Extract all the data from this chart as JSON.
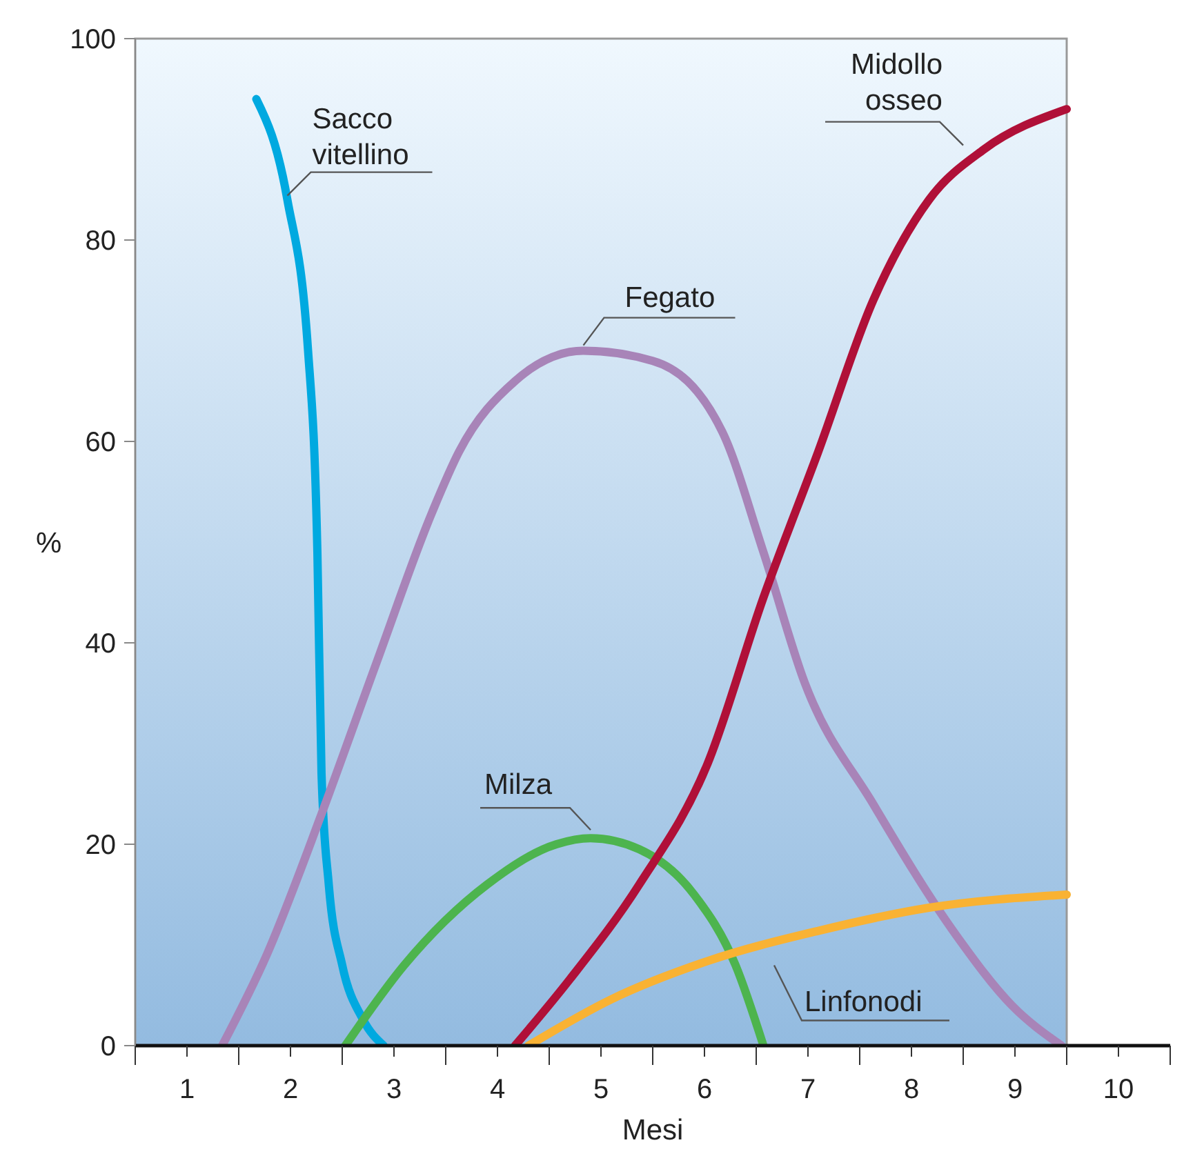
{
  "chart_data": {
    "type": "line",
    "xlabel": "Mesi",
    "ylabel": "%",
    "xlim": [
      0.5,
      10.5
    ],
    "ylim": [
      0,
      100
    ],
    "xticks": [
      {
        "value": 0.5,
        "label": null
      },
      1,
      {
        "value": 1.5,
        "label": null
      },
      2,
      {
        "value": 2.5,
        "label": null
      },
      3,
      {
        "value": 3.5,
        "label": null
      },
      4,
      {
        "value": 4.5,
        "label": null
      },
      5,
      {
        "value": 5.5,
        "label": null
      },
      6,
      {
        "value": 6.5,
        "label": null
      },
      7,
      {
        "value": 7.5,
        "label": null
      },
      8,
      {
        "value": 8.5,
        "label": null
      },
      9,
      {
        "value": 9.5,
        "label": null
      },
      10,
      {
        "value": 10.5,
        "label": null
      }
    ],
    "yticks": [
      0,
      20,
      40,
      60,
      80,
      100
    ],
    "grid": false,
    "series": [
      {
        "name": "Sacco vitellino",
        "color": "#00a9e0",
        "x": [
          1.67,
          1.97,
          2.17,
          2.26,
          2.3,
          2.37,
          2.5,
          2.7,
          2.9
        ],
        "values": [
          94,
          84,
          69,
          49,
          27,
          16,
          8,
          2.6,
          0
        ]
      },
      {
        "name": "Fegato",
        "color": "#a884b8",
        "x": [
          1.34,
          1.77,
          2.3,
          2.83,
          3.37,
          3.63,
          4.17,
          4.83,
          5.5,
          6.17,
          6.57,
          6.97,
          7.63,
          8.43,
          8.97,
          9.45
        ],
        "values": [
          0,
          9,
          23,
          38,
          53,
          59,
          66,
          69,
          68,
          61,
          49,
          36,
          24,
          11,
          4,
          0
        ]
      },
      {
        "name": "Milza",
        "color": "#4db44e",
        "x": [
          2.53,
          3.1,
          3.9,
          4.57,
          4.9,
          5.37,
          5.9,
          6.3,
          6.57
        ],
        "values": [
          0,
          8,
          16,
          20,
          20.6,
          19.5,
          15,
          8,
          0
        ]
      },
      {
        "name": "Midollo osseo",
        "color": "#b01038",
        "x": [
          4.17,
          4.7,
          5.37,
          6.03,
          6.57,
          7.1,
          7.63,
          8.17,
          8.7,
          9.5
        ],
        "values": [
          0,
          6.6,
          16,
          28,
          44.5,
          59,
          74,
          84,
          89,
          93
        ]
      },
      {
        "name": "Linfonodi",
        "color": "#f9b233",
        "x": [
          4.3,
          5.1,
          6.03,
          7.1,
          8.17,
          9.5
        ],
        "values": [
          0,
          4.6,
          8.4,
          11.4,
          13.7,
          15
        ]
      }
    ]
  }
}
